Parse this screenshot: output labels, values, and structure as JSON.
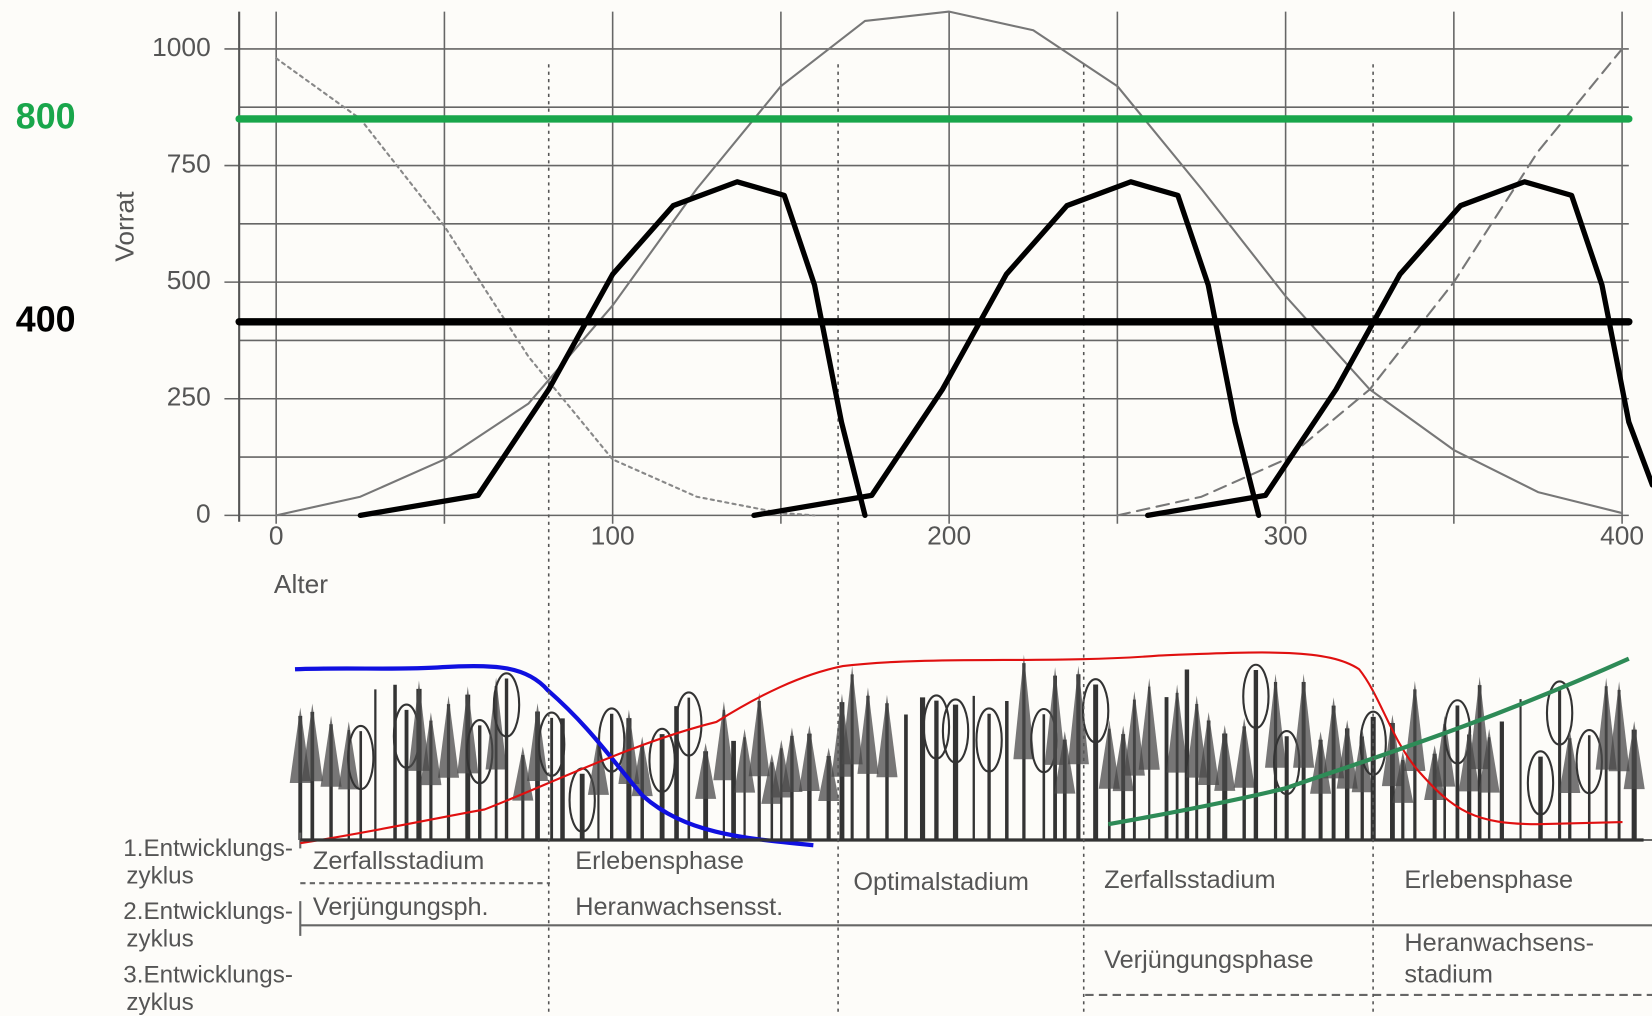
{
  "chart_data": {
    "type": "line",
    "y_label": "Vorrat",
    "x_label": "Alter",
    "xlim": [
      -11,
      402
    ],
    "ylim": [
      0,
      1080
    ],
    "xticks": [
      0,
      100,
      200,
      300,
      400
    ],
    "yticks": [
      0,
      250,
      500,
      750,
      1000
    ],
    "x_minor_ticks": [
      50,
      150,
      250,
      350
    ],
    "y_minor_ticks": [
      125,
      375,
      625,
      875
    ],
    "grid": true,
    "phase_boundaries": [
      81,
      167,
      240,
      326
    ],
    "annotations": [
      {
        "text": "800",
        "color": "#19a64b",
        "y": 850
      },
      {
        "text": "400",
        "color": "#000000",
        "y": 415
      }
    ],
    "series": [
      {
        "color": "#777777",
        "dash": "solid",
        "width": 2,
        "x": [
          0,
          25,
          50,
          75,
          100,
          125,
          150,
          175,
          200,
          225,
          250,
          275,
          300,
          325,
          350,
          375,
          400
        ],
        "values": [
          0,
          40,
          120,
          240,
          450,
          700,
          920,
          1060,
          1080,
          1040,
          920,
          700,
          470,
          270,
          140,
          50,
          5
        ]
      },
      {
        "color": "#888888",
        "dash": "dotted",
        "width": 2,
        "x": [
          0,
          25,
          50,
          75,
          100,
          125,
          150,
          160
        ],
        "values": [
          980,
          850,
          620,
          340,
          120,
          40,
          5,
          0
        ]
      },
      {
        "color": "#777777",
        "dash": "dashed",
        "width": 2,
        "x": [
          250,
          275,
          300,
          325,
          350,
          375,
          400
        ],
        "values": [
          0,
          40,
          120,
          270,
          500,
          780,
          1000
        ]
      },
      {
        "color": "#000000",
        "dash": "solid",
        "width": 5,
        "x": [
          25,
          60,
          81,
          100,
          118,
          137,
          151,
          160,
          168,
          175
        ],
        "values": [
          0,
          43,
          270,
          517,
          664,
          715,
          686,
          494,
          200,
          0
        ]
      },
      {
        "color": "#000000",
        "dash": "solid",
        "width": 5,
        "x": [
          142,
          177,
          198,
          217,
          235,
          254,
          268,
          277,
          285,
          292
        ],
        "values": [
          0,
          43,
          270,
          517,
          664,
          715,
          686,
          494,
          200,
          0
        ]
      },
      {
        "color": "#000000",
        "dash": "solid",
        "width": 5,
        "x": [
          259,
          294,
          315,
          334,
          352,
          371,
          385,
          394,
          402,
          409
        ],
        "values": [
          0,
          43,
          270,
          517,
          664,
          715,
          686,
          494,
          200,
          65
        ]
      },
      {
        "color": "#19a64b",
        "dash": "solid",
        "width": 7,
        "x": [
          -11,
          402
        ],
        "values": [
          850,
          850
        ]
      },
      {
        "color": "#000000",
        "dash": "solid",
        "width": 7,
        "x": [
          -11,
          402
        ],
        "values": [
          415,
          415
        ]
      }
    ],
    "cycles": [
      [
        "1.Entwicklungs-",
        "zyklus"
      ],
      [
        "2.Entwicklungs-",
        "zyklus"
      ],
      [
        "3.Entwicklungs-",
        "zyklus"
      ]
    ],
    "phases": [
      [
        "Zerfallsstadium"
      ],
      [
        "Erlebensphase"
      ],
      [
        "Verjüngungsph."
      ],
      [
        "Heranwachsensst."
      ],
      [
        "Optimalstadium"
      ],
      [
        "Zerfallsstadium"
      ],
      [
        "Erlebensphase"
      ],
      [
        "Verjüngungsphase"
      ],
      [
        "Heranwachsens-",
        "stadium"
      ]
    ]
  }
}
